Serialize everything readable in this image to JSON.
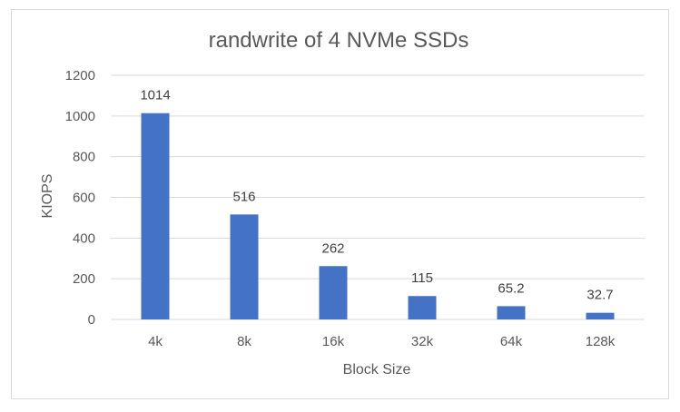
{
  "chart_data": {
    "type": "bar",
    "title": "randwrite of 4 NVMe SSDs",
    "xlabel": "Block Size",
    "ylabel": "KIOPS",
    "categories": [
      "4k",
      "8k",
      "16k",
      "32k",
      "64k",
      "128k"
    ],
    "values": [
      1014,
      516,
      262,
      115,
      65.2,
      32.7
    ],
    "data_labels": [
      "1014",
      "516",
      "262",
      "115",
      "65.2",
      "32.7"
    ],
    "ylim": [
      0,
      1200
    ],
    "yticks": [
      0,
      200,
      400,
      600,
      800,
      1000,
      1200
    ],
    "ytick_labels": [
      "0",
      "200",
      "400",
      "600",
      "800",
      "1000",
      "1200"
    ],
    "grid": true,
    "legend": "none",
    "bar_color": "#4472c4",
    "grid_color": "#d9d9d9"
  }
}
